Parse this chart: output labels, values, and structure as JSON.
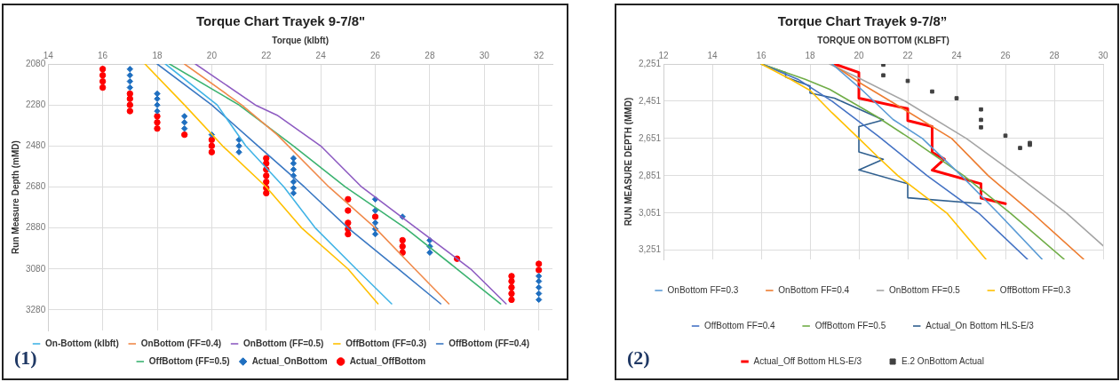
{
  "chart_data": [
    {
      "type": "line",
      "title": "Torque Chart Trayek 9-7/8\"",
      "xlabel": "Torque (klbft)",
      "ylabel": "Run Measure Depth (mMD)",
      "xlim": [
        14,
        32.5
      ],
      "xticks": [
        14,
        16,
        18,
        20,
        22,
        24,
        26,
        28,
        30,
        32
      ],
      "ylim": [
        3380,
        2080
      ],
      "yticks": [
        2080,
        2280,
        2480,
        2680,
        2880,
        3080,
        3280
      ],
      "grid": true,
      "legend": "bottom",
      "annotations": [
        "(1)"
      ],
      "series": [
        {
          "name": "On-Bottom (klbft)",
          "type": "line",
          "color": "#42b4e6",
          "x": [
            18.3,
            20.2,
            21.25,
            22.65,
            23.8,
            25.3,
            26.6
          ],
          "values": [
            2080,
            2280,
            2480,
            2680,
            2880,
            3080,
            3250
          ]
        },
        {
          "name": "OnBottom (FF=0.4)",
          "type": "line",
          "color": "#f08a4b",
          "x": [
            19.0,
            21.1,
            22.4,
            24.3,
            26.0,
            27.45,
            28.7
          ],
          "values": [
            2080,
            2280,
            2425,
            2680,
            2880,
            3080,
            3250
          ]
        },
        {
          "name": "OnBottom (FF=0.5)",
          "type": "line",
          "color": "#8e5cc2",
          "x": [
            19.4,
            21.6,
            22.4,
            24.0,
            25.5,
            27.5,
            29.5,
            30.8
          ],
          "values": [
            2080,
            2280,
            2330,
            2480,
            2680,
            2880,
            3080,
            3250
          ]
        },
        {
          "name": "OffBottom (FF=0.3)",
          "type": "line",
          "color": "#ffc000",
          "x": [
            17.55,
            19.0,
            20.4,
            22.0,
            23.3,
            25.0,
            26.1
          ],
          "values": [
            2080,
            2280,
            2480,
            2680,
            2880,
            3080,
            3250
          ]
        },
        {
          "name": "OffBottom (FF=0.4)",
          "type": "line",
          "color": "#3a78c3",
          "x": [
            18.0,
            20.0,
            21.7,
            23.4,
            25.0,
            26.85,
            28.4
          ],
          "values": [
            2080,
            2280,
            2480,
            2680,
            2880,
            3080,
            3250
          ]
        },
        {
          "name": "OffBottom (FF=0.5)",
          "type": "line",
          "color": "#3cb371",
          "x": [
            18.45,
            21.0,
            23.0,
            24.9,
            27.1,
            29.0,
            30.6
          ],
          "values": [
            2080,
            2280,
            2480,
            2680,
            2880,
            3080,
            3250
          ]
        },
        {
          "name": "Actual_OnBottom",
          "type": "scatter",
          "marker": "diamond",
          "color": "#1f6fc0",
          "x": [
            17,
            17,
            17,
            17,
            18,
            18,
            18,
            18,
            19,
            19,
            19,
            20,
            21,
            21,
            21,
            23,
            23,
            23,
            23,
            23,
            23,
            23,
            26,
            26,
            26,
            26,
            26,
            27,
            28,
            28,
            28,
            32,
            32,
            32,
            32,
            32
          ],
          "values": [
            2105,
            2135,
            2165,
            2195,
            2225,
            2250,
            2280,
            2310,
            2335,
            2365,
            2395,
            2425,
            2450,
            2480,
            2510,
            2540,
            2565,
            2595,
            2625,
            2655,
            2685,
            2710,
            2740,
            2795,
            2855,
            2885,
            2910,
            2825,
            2940,
            2970,
            3000,
            3115,
            3140,
            3170,
            3200,
            3230
          ]
        },
        {
          "name": "Actual_OffBottom",
          "type": "scatter",
          "marker": "circle",
          "color": "#ff0000",
          "x": [
            16,
            16,
            16,
            16,
            17,
            17,
            17,
            17,
            18,
            18,
            18,
            19,
            20,
            20,
            20,
            22,
            22,
            22,
            22,
            22,
            22,
            22,
            25,
            25,
            25,
            25,
            25,
            26,
            27,
            27,
            27,
            29,
            31,
            31,
            31,
            31,
            31,
            32,
            32
          ],
          "values": [
            2105,
            2135,
            2165,
            2195,
            2225,
            2250,
            2280,
            2310,
            2335,
            2365,
            2395,
            2425,
            2450,
            2480,
            2510,
            2540,
            2565,
            2595,
            2625,
            2655,
            2685,
            2710,
            2740,
            2795,
            2855,
            2885,
            2910,
            2825,
            2940,
            2970,
            3000,
            3030,
            3115,
            3140,
            3170,
            3200,
            3230,
            3055,
            3085
          ]
        }
      ]
    },
    {
      "type": "line",
      "title": "Torque Chart Trayek 9-7/8”",
      "xlabel": "TORQUE ON BOTTOM (KLBFT)",
      "ylabel": "RUN MEASURE DEPTH (MMD)",
      "xlim": [
        12,
        30
      ],
      "xticks": [
        12,
        14,
        16,
        18,
        20,
        22,
        24,
        26,
        28,
        30
      ],
      "ylim": [
        3300,
        2251
      ],
      "yticks": [
        {
          "value": 2251,
          "label": "2,251"
        },
        {
          "value": 2451,
          "label": "2,451"
        },
        {
          "value": 2651,
          "label": "2,651"
        },
        {
          "value": 2851,
          "label": "2,851"
        },
        {
          "value": 3051,
          "label": "3,051"
        },
        {
          "value": 3251,
          "label": "3,251"
        }
      ],
      "grid": true,
      "legend": "bottom",
      "annotations": [
        "(2)"
      ],
      "series": [
        {
          "name": "OnBottom FF=0.3",
          "type": "line",
          "color": "#5b9bd5",
          "x": [
            18.9,
            20.1,
            21.4,
            22.6,
            24.2,
            25.7,
            27.5
          ],
          "values": [
            2251,
            2387,
            2549,
            2651,
            2851,
            3051,
            3299
          ]
        },
        {
          "name": "OnBottom FF=0.4",
          "type": "line",
          "color": "#ed7d31",
          "x": [
            18.9,
            20.1,
            21.3,
            23.8,
            25.3,
            27.1,
            29.2
          ],
          "values": [
            2251,
            2357,
            2451,
            2651,
            2851,
            3051,
            3299
          ]
        },
        {
          "name": "OnBottom FF=0.5",
          "type": "line",
          "color": "#a5a5a5",
          "x": [
            18.8,
            20.1,
            21.9,
            24.4,
            26.5,
            28.5,
            30.0
          ],
          "values": [
            2251,
            2333,
            2451,
            2651,
            2851,
            3051,
            3227
          ]
        },
        {
          "name": "OffBottom FF=0.3",
          "type": "line",
          "color": "#ffc000",
          "x": [
            16.0,
            17.2,
            18.0,
            18.9,
            20.0,
            20.8,
            21.6,
            23.6,
            25.2
          ],
          "values": [
            2251,
            2333,
            2393,
            2513,
            2651,
            2753,
            2851,
            3051,
            3299
          ]
        },
        {
          "name": "OffBottom FF=0.4",
          "type": "line",
          "color": "#4472c4",
          "x": [
            16.0,
            17.5,
            18.9,
            20.8,
            22.8,
            24.9,
            26.9
          ],
          "values": [
            2251,
            2333,
            2451,
            2639,
            2851,
            3051,
            3299
          ]
        },
        {
          "name": "OffBottom FF=0.5",
          "type": "line",
          "color": "#70ad47",
          "x": [
            16.0,
            17.8,
            18.8,
            20.7,
            22.1,
            24.3,
            26.2,
            28.4
          ],
          "values": [
            2251,
            2333,
            2387,
            2531,
            2651,
            2851,
            3051,
            3299
          ]
        },
        {
          "name": "Actual_On Bottom HLS-E/3",
          "type": "line",
          "color": "#2f5f8f",
          "x": [
            16,
            17,
            17,
            18,
            18,
            19,
            21,
            20,
            20,
            21,
            20,
            22,
            22,
            25
          ],
          "values": [
            2251,
            2297,
            2321,
            2369,
            2407,
            2435,
            2551,
            2587,
            2723,
            2762,
            2820,
            2894,
            2969,
            3001
          ]
        },
        {
          "name": "Actual_Off Bottom HLS-E/3",
          "type": "line",
          "color": "#ff0000",
          "x": [
            19,
            20,
            20,
            22,
            22,
            23,
            23,
            23.5,
            23,
            25,
            25,
            26
          ],
          "values": [
            2251,
            2297,
            2435,
            2491,
            2555,
            2587,
            2726,
            2762,
            2821,
            2894,
            2971,
            3001
          ]
        },
        {
          "name": "E.2 OnBottom Actual",
          "type": "scatter",
          "marker": "square",
          "color": "#404040",
          "x": [
            21,
            21,
            22,
            23,
            24,
            25,
            25,
            25,
            26,
            26.6,
            27,
            27
          ],
          "values": [
            2255,
            2312,
            2342,
            2399,
            2435,
            2495,
            2551,
            2591,
            2636,
            2702,
            2675,
            2685
          ]
        }
      ]
    }
  ]
}
